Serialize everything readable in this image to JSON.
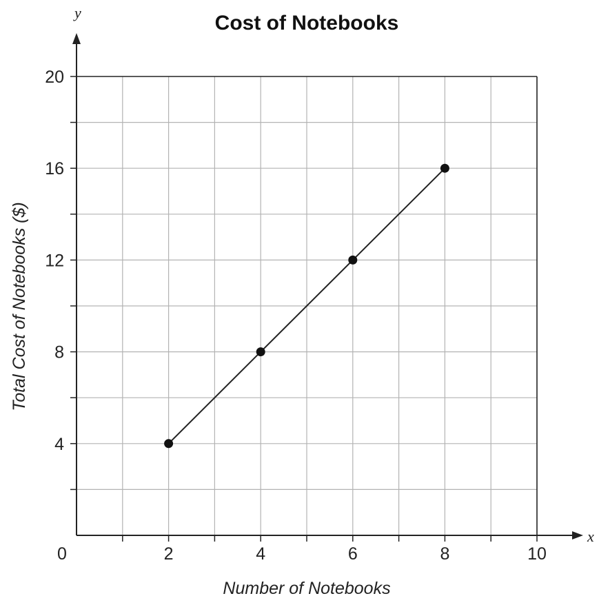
{
  "chart_data": {
    "type": "line",
    "title": "Cost of Notebooks",
    "xlabel": "Number of Notebooks",
    "ylabel": "Total Cost of Notebooks ($)",
    "x_axis_var": "x",
    "y_axis_var": "y",
    "origin_label": "0",
    "xlim": [
      0,
      10
    ],
    "ylim": [
      0,
      20
    ],
    "x_ticks": [
      2,
      4,
      6,
      8,
      10
    ],
    "y_ticks": [
      4,
      8,
      12,
      16,
      20
    ],
    "x_grid_step": 1,
    "y_grid_step": 2,
    "grid": true,
    "series": [
      {
        "x": [
          2,
          4,
          6,
          8
        ],
        "y": [
          4,
          8,
          12,
          16
        ]
      }
    ]
  }
}
